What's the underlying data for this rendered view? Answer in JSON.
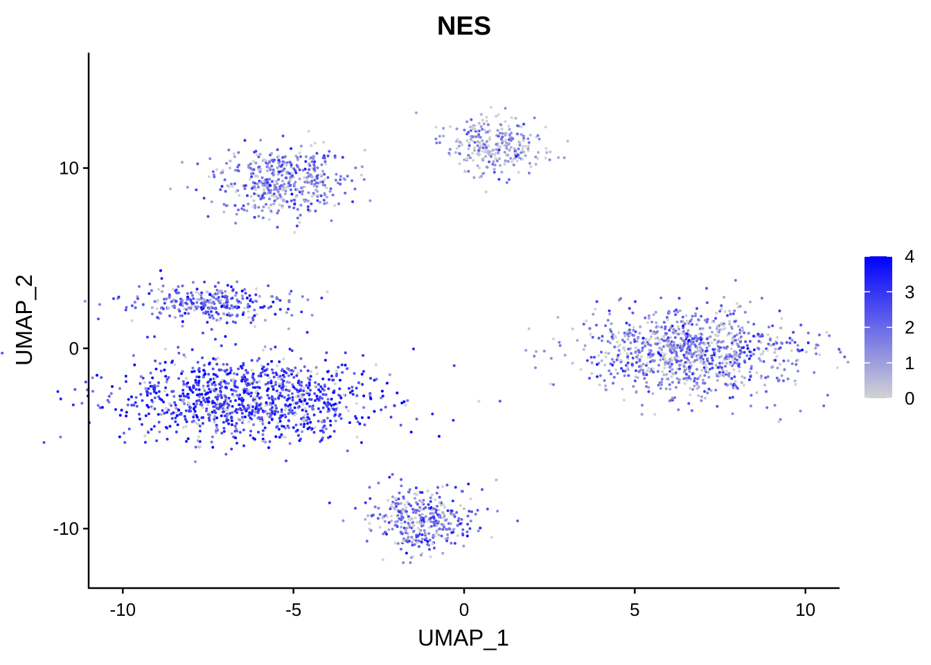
{
  "chart_data": {
    "type": "scatter",
    "title": "NES",
    "xlabel": "UMAP_1",
    "ylabel": "UMAP_2",
    "xlim": [
      -11,
      11
    ],
    "ylim": [
      -13.3,
      16.4
    ],
    "x_ticks": [
      -10,
      -5,
      0,
      5,
      10
    ],
    "x_tick_labels": [
      "-10",
      "-5",
      "0",
      "5",
      "10"
    ],
    "y_ticks": [
      -10,
      0,
      10
    ],
    "y_tick_labels": [
      "-10",
      "0",
      "10"
    ],
    "grid": false,
    "color_scale": {
      "low_color": "#d3d3d3",
      "high_color": "#0000ff",
      "min": 0,
      "max": 4,
      "ticks": [
        0,
        1,
        2,
        3,
        4
      ],
      "tick_labels": [
        "0",
        "1",
        "2",
        "3",
        "4"
      ],
      "legend_position": "right"
    },
    "clusters": [
      {
        "center_x": -6.2,
        "center_y": -2.8,
        "spread_x": 1.9,
        "spread_y": 1.15,
        "mean_expression": 2.9
      },
      {
        "center_x": -7.5,
        "center_y": 2.5,
        "spread_x": 1.2,
        "spread_y": 0.5,
        "mean_expression": 2.2
      },
      {
        "center_x": -5.3,
        "center_y": 9.2,
        "spread_x": 1.0,
        "spread_y": 0.9,
        "mean_expression": 1.7
      },
      {
        "center_x": 0.9,
        "center_y": 11.2,
        "spread_x": 0.7,
        "spread_y": 0.8,
        "mean_expression": 0.9
      },
      {
        "center_x": 6.8,
        "center_y": -0.2,
        "spread_x": 1.6,
        "spread_y": 1.2,
        "mean_expression": 1.6
      },
      {
        "center_x": -1.2,
        "center_y": -9.4,
        "spread_x": 0.8,
        "spread_y": 0.9,
        "mean_expression": 1.8
      }
    ]
  }
}
